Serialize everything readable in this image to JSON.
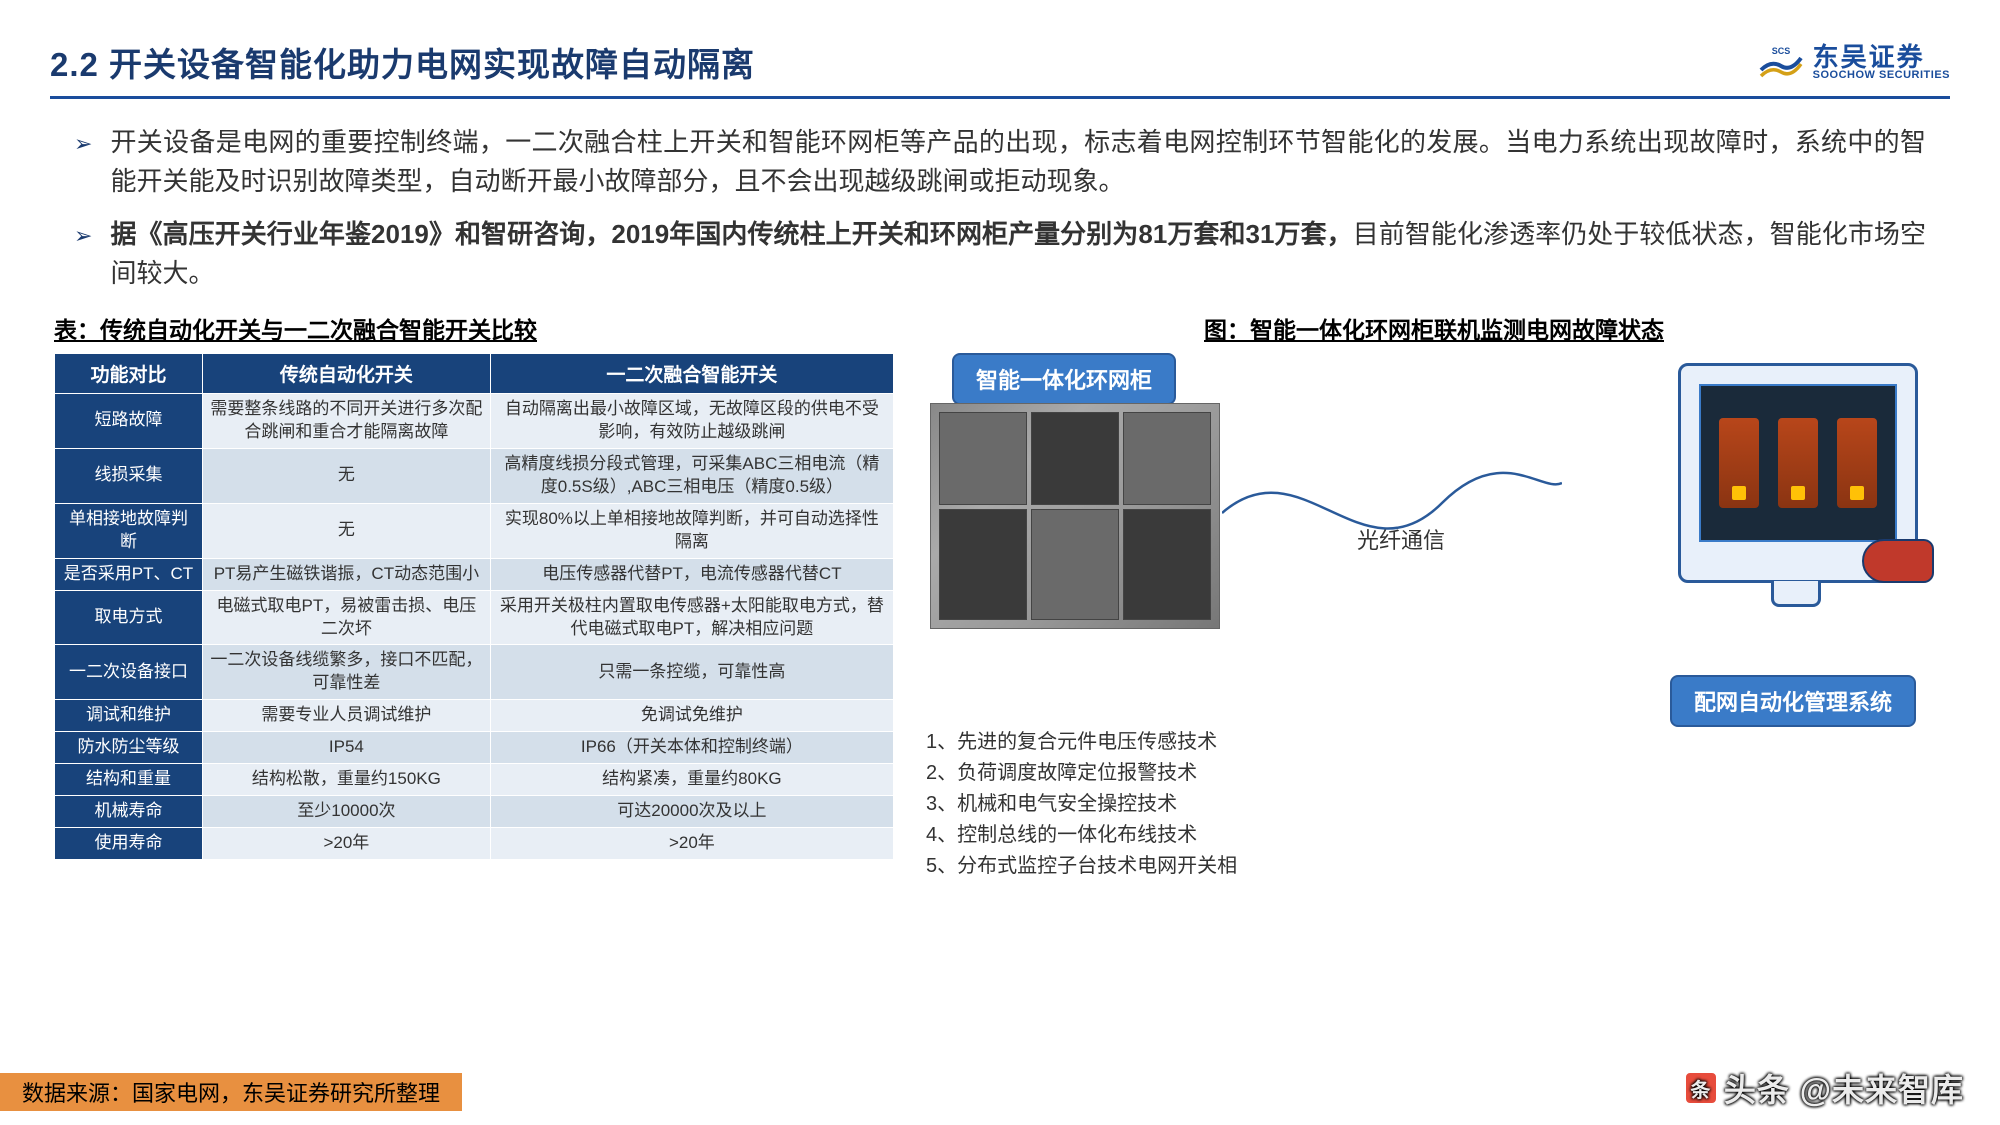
{
  "title": "2.2 开关设备智能化助力电网实现故障自动隔离",
  "logo": {
    "cn": "东吴证券",
    "en": "SOOCHOW SECURITIES"
  },
  "bullets": [
    {
      "plain": "开关设备是电网的重要控制终端，一二次融合柱上开关和智能环网柜等产品的出现，标志着电网控制环节智能化的发展。当电力系统出现故障时，系统中的智能开关能及时识别故障类型，自动断开最小故障部分，且不会出现越级跳闸或拒动现象。"
    },
    {
      "bold": "据《高压开关行业年鉴2019》和智研咨询，2019年国内传统柱上开关和环网柜产量分别为81万套和31万套，",
      "tail": "目前智能化渗透率仍处于较低状态，智能化市场空间较大。"
    }
  ],
  "table_caption": "表：传统自动化开关与一二次融合智能开关比较",
  "table": {
    "header_bg": "#18437b",
    "header_fg": "#ffffff",
    "row_odd_bg": "#e8eef5",
    "row_even_bg": "#d4dfea",
    "headers": [
      "功能对比",
      "传统自动化开关",
      "一二次融合智能开关"
    ],
    "rows": [
      [
        "短路故障",
        "需要整条线路的不同开关进行多次配合跳闸和重合才能隔离故障",
        "自动隔离出最小故障区域，无故障区段的供电不受影响，有效防止越级跳闸"
      ],
      [
        "线损采集",
        "无",
        "高精度线损分段式管理，可采集ABC三相电流（精度0.5S级）,ABC三相电压（精度0.5级）"
      ],
      [
        "单相接地故障判断",
        "无",
        "实现80%以上单相接地故障判断，并可自动选择性隔离"
      ],
      [
        "是否采用PT、CT",
        "PT易产生磁铁谐振，CT动态范围小",
        "电压传感器代替PT，电流传感器代替CT"
      ],
      [
        "取电方式",
        "电磁式取电PT，易被雷击损、电压二次坏",
        "采用开关极柱内置取电传感器+太阳能取电方式，替代电磁式取电PT，解决相应问题"
      ],
      [
        "一二次设备接口",
        "一二次设备线缆繁多，接口不匹配，可靠性差",
        "只需一条控缆，可靠性高"
      ],
      [
        "调试和维护",
        "需要专业人员调试维护",
        "免调试免维护"
      ],
      [
        "防水防尘等级",
        "IP54",
        "IP66（开关本体和控制终端）"
      ],
      [
        "结构和重量",
        "结构松散，重量约150KG",
        "结构紧凑，重量约80KG"
      ],
      [
        "机械寿命",
        "至少10000次",
        "可达20000次及以上"
      ],
      [
        "使用寿命",
        ">20年",
        ">20年"
      ]
    ]
  },
  "diagram_caption": "图：智能一体化环网柜联机监测电网故障状态",
  "diagram": {
    "cabinet_label": "智能一体化环网柜",
    "fiber_label": "光纤通信",
    "system_label": "配网自动化管理系统",
    "label_bg": "#3a7bc8",
    "label_fg": "#ffffff",
    "curve_color": "#2a5a9a"
  },
  "notes": [
    "1、先进的复合元件电压传感技术",
    "2、负荷调度故障定位报警技术",
    "3、机械和电气安全操控技术",
    "4、控制总线的一体化布线技术",
    "5、分布式监控子台技术电网开关相"
  ],
  "footer": "数据来源：国家电网，东吴证券研究所整理",
  "watermark": "头条 @未来智库"
}
